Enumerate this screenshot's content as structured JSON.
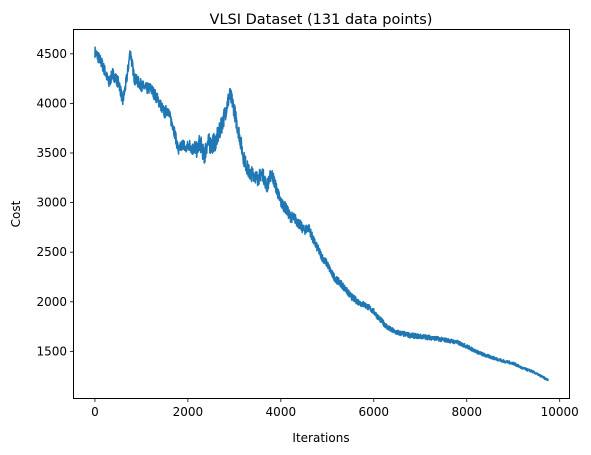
{
  "chart_data": {
    "type": "line",
    "title": "VLSI Dataset (131 data points)",
    "xlabel": "Iterations",
    "ylabel": "Cost",
    "xlim": [
      -450,
      10200
    ],
    "ylim": [
      1030,
      4740
    ],
    "xticks": [
      0,
      2000,
      4000,
      6000,
      8000,
      10000
    ],
    "yticks": [
      1500,
      2000,
      2500,
      3000,
      3500,
      4000,
      4500
    ],
    "grid": false,
    "series": [
      {
        "color": "#1f77b4",
        "noise": [
          [
            0,
            60
          ],
          [
            2000,
            60
          ],
          [
            2400,
            100
          ],
          [
            4000,
            60
          ],
          [
            5000,
            40
          ],
          [
            6000,
            30
          ],
          [
            8000,
            20
          ],
          [
            9750,
            10
          ]
        ],
        "x": [
          0,
          80,
          150,
          220,
          300,
          380,
          450,
          520,
          600,
          650,
          700,
          760,
          800,
          850,
          920,
          1000,
          1100,
          1200,
          1300,
          1400,
          1500,
          1560,
          1620,
          1680,
          1740,
          1800,
          1850,
          1900,
          1950,
          2000,
          2050,
          2100,
          2150,
          2200,
          2250,
          2300,
          2350,
          2400,
          2450,
          2500,
          2600,
          2700,
          2800,
          2850,
          2900,
          2950,
          3000,
          3050,
          3100,
          3200,
          3300,
          3350,
          3400,
          3500,
          3600,
          3700,
          3800,
          3900,
          4000,
          4100,
          4200,
          4300,
          4400,
          4500,
          4600,
          4700,
          4800,
          4900,
          5000,
          5100,
          5200,
          5300,
          5400,
          5500,
          5600,
          5700,
          5800,
          5900,
          6000,
          6100,
          6200,
          6300,
          6400,
          6500,
          6600,
          6800,
          7000,
          7200,
          7400,
          7600,
          7800,
          8000,
          8200,
          8400,
          8600,
          8800,
          9000,
          9200,
          9400,
          9600,
          9750
        ],
        "y": [
          4520,
          4460,
          4400,
          4320,
          4200,
          4300,
          4250,
          4200,
          4020,
          4150,
          4300,
          4530,
          4400,
          4250,
          4220,
          4180,
          4150,
          4150,
          4080,
          4000,
          3900,
          3950,
          3850,
          3780,
          3650,
          3520,
          3560,
          3600,
          3530,
          3570,
          3580,
          3540,
          3560,
          3520,
          3610,
          3560,
          3450,
          3580,
          3600,
          3580,
          3620,
          3740,
          3900,
          4000,
          4080,
          4030,
          3930,
          3800,
          3700,
          3450,
          3320,
          3280,
          3300,
          3240,
          3300,
          3160,
          3300,
          3150,
          3000,
          2950,
          2860,
          2840,
          2780,
          2720,
          2750,
          2620,
          2530,
          2440,
          2380,
          2280,
          2220,
          2180,
          2120,
          2060,
          2020,
          1990,
          1970,
          1940,
          1900,
          1840,
          1790,
          1740,
          1710,
          1690,
          1680,
          1660,
          1650,
          1640,
          1625,
          1610,
          1590,
          1550,
          1500,
          1460,
          1430,
          1400,
          1380,
          1330,
          1300,
          1250,
          1210
        ]
      }
    ]
  }
}
